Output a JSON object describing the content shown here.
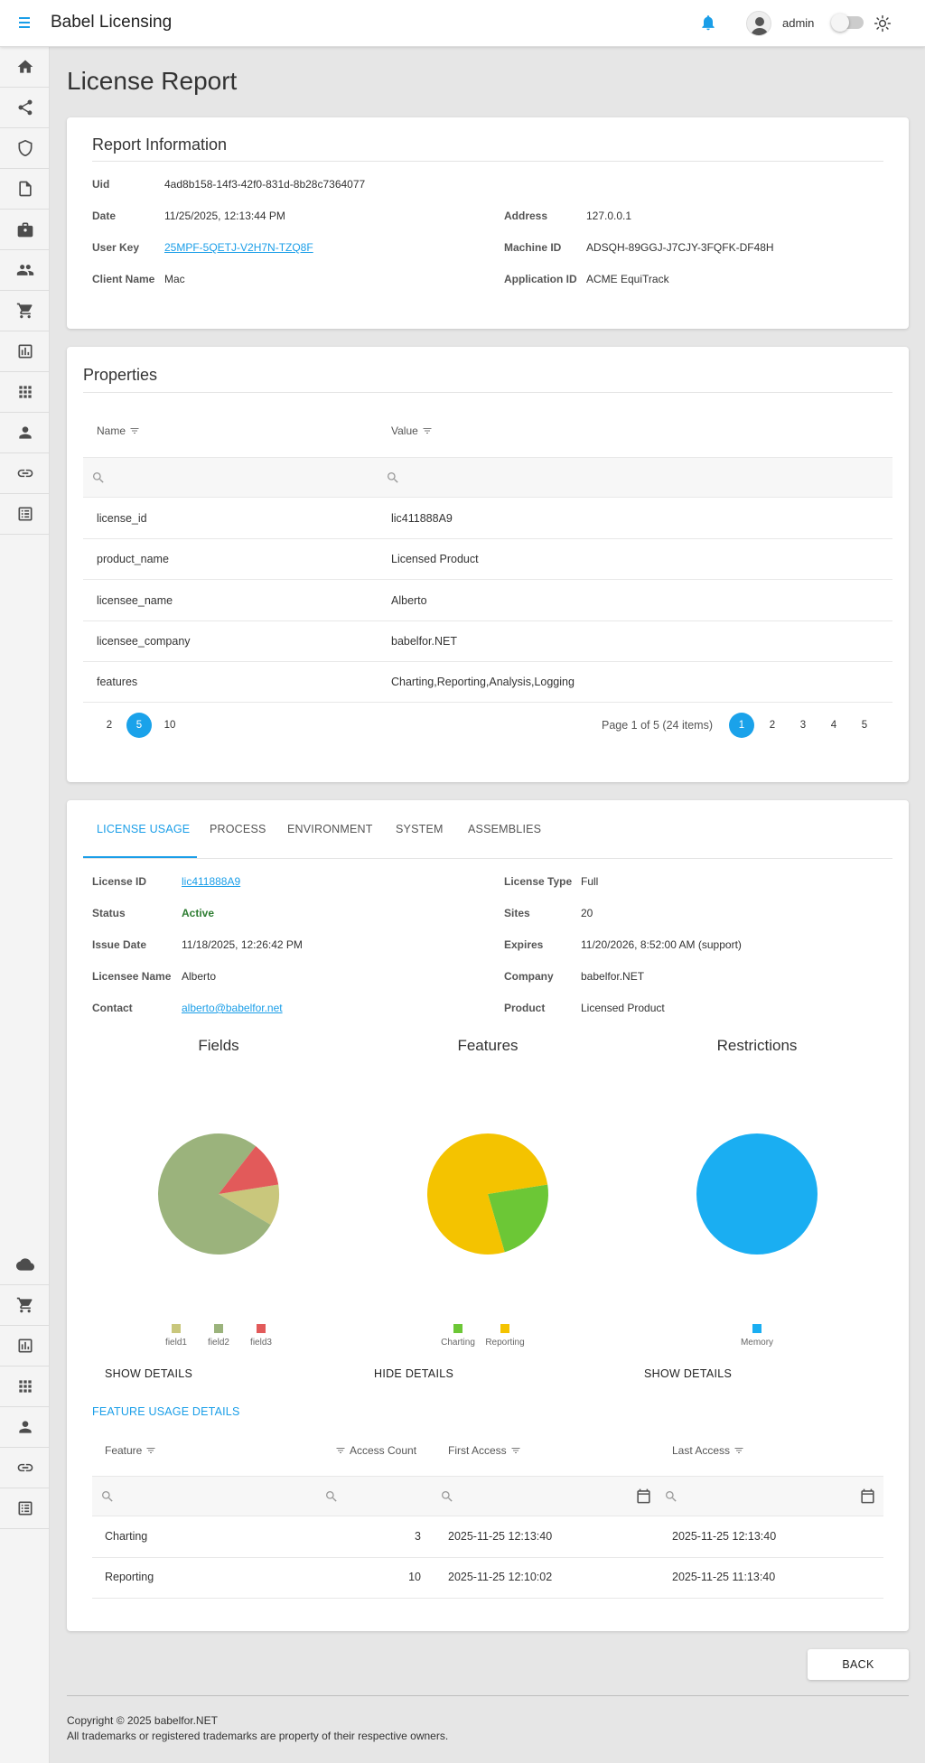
{
  "app": {
    "title": "Babel Licensing",
    "username": "admin"
  },
  "page": {
    "title": "License Report"
  },
  "report": {
    "title": "Report Information",
    "uid_label": "Uid",
    "uid": "4ad8b158-14f3-42f0-831d-8b28c7364077",
    "date_label": "Date",
    "date": "11/25/2025, 12:13:44 PM",
    "userkey_label": "User Key",
    "userkey": "25MPF-5QETJ-V2H7N-TZQ8F",
    "client_label": "Client Name",
    "client": "Mac",
    "address_label": "Address",
    "address": "127.0.0.1",
    "machine_label": "Machine ID",
    "machine": "ADSQH-89GGJ-J7CJY-3FQFK-DF48H",
    "appid_label": "Application ID",
    "appid": "ACME EquiTrack"
  },
  "properties": {
    "title": "Properties",
    "col_name": "Name",
    "col_value": "Value",
    "rows": [
      {
        "name": "license_id",
        "value": "lic411888A9"
      },
      {
        "name": "product_name",
        "value": "Licensed Product"
      },
      {
        "name": "licensee_name",
        "value": "Alberto"
      },
      {
        "name": "licensee_company",
        "value": "babelfor.NET"
      },
      {
        "name": "features",
        "value": "Charting,Reporting,Analysis,Logging"
      }
    ],
    "page_sizes": [
      "2",
      "5",
      "10"
    ],
    "page_info": "Page 1 of 5 (24 items)",
    "pages": [
      "1",
      "2",
      "3",
      "4",
      "5"
    ]
  },
  "tabs": [
    "LICENSE USAGE",
    "PROCESS",
    "ENVIRONMENT",
    "SYSTEM",
    "ASSEMBLIES"
  ],
  "license": {
    "id_label": "License ID",
    "id": "lic411888A9",
    "status_label": "Status",
    "status": "Active",
    "issue_label": "Issue Date",
    "issue": "11/18/2025, 12:26:42 PM",
    "licensee_label": "Licensee Name",
    "licensee": "Alberto",
    "contact_label": "Contact",
    "contact": "alberto@babelfor.net",
    "type_label": "License Type",
    "type": "Full",
    "sites_label": "Sites",
    "sites": "20",
    "expires_label": "Expires",
    "expires": "11/20/2026, 8:52:00 AM (support)",
    "company_label": "Company",
    "company": "babelfor.NET",
    "product_label": "Product",
    "product": "Licensed Product"
  },
  "chart_data": [
    {
      "type": "pie",
      "title": "Fields",
      "categories": [
        "field1",
        "field2",
        "field3"
      ],
      "values": [
        11,
        77,
        12
      ],
      "colors": [
        "#c9c77c",
        "#9bb37c",
        "#e25a5a"
      ]
    },
    {
      "type": "pie",
      "title": "Features",
      "categories": [
        "Charting",
        "Reporting"
      ],
      "values": [
        23,
        77
      ],
      "colors": [
        "#6cc736",
        "#f4c300"
      ]
    },
    {
      "type": "pie",
      "title": "Restrictions",
      "categories": [
        "Memory"
      ],
      "values": [
        100
      ],
      "colors": [
        "#1aaef2"
      ]
    }
  ],
  "chart_buttons": [
    "SHOW DETAILS",
    "HIDE DETAILS",
    "SHOW DETAILS"
  ],
  "feature_usage": {
    "title": "FEATURE USAGE DETAILS",
    "col_feature": "Feature",
    "col_count": "Access Count",
    "col_first": "First Access",
    "col_last": "Last Access",
    "rows": [
      {
        "feature": "Charting",
        "count": "3",
        "first": "2025-11-25 12:13:40",
        "last": "2025-11-25 12:13:40"
      },
      {
        "feature": "Reporting",
        "count": "10",
        "first": "2025-11-25 12:10:02",
        "last": "2025-11-25 11:13:40"
      }
    ]
  },
  "back_label": "BACK",
  "footer": {
    "line1": "Copyright © 2025 babelfor.NET",
    "line2": "All trademarks or registered trademarks are property of their respective owners."
  }
}
